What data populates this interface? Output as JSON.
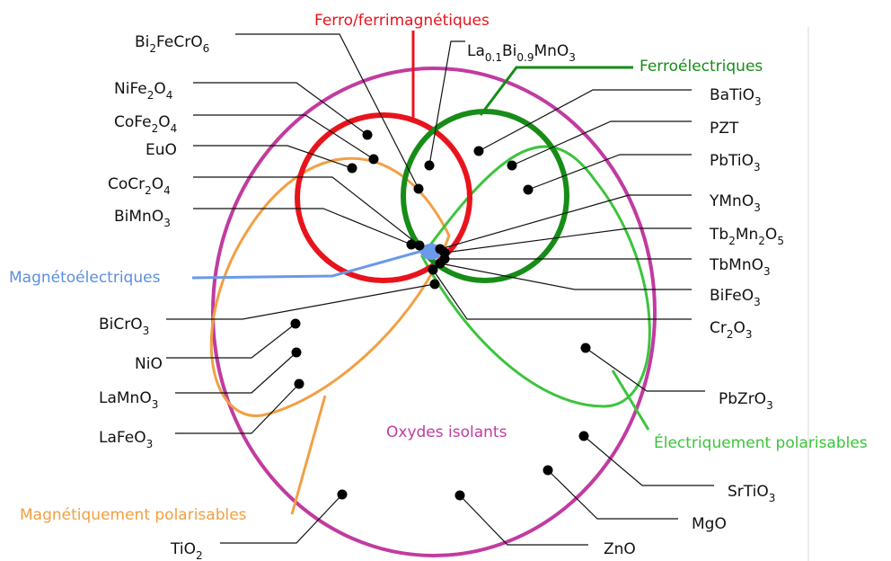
{
  "compounds": [
    {
      "parts": [
        "Bi",
        "2",
        "FeCrO",
        "6"
      ]
    },
    {
      "parts": [
        "NiFe",
        "2",
        "O",
        "4"
      ]
    },
    {
      "parts": [
        "CoFe",
        "2",
        "O",
        "4"
      ]
    },
    {
      "parts": [
        "EuO"
      ]
    },
    {
      "parts": [
        "CoCr",
        "2",
        "O",
        "4"
      ]
    },
    {
      "parts": [
        "BiMnO",
        "3"
      ]
    },
    {
      "parts": [
        "BiCrO",
        "3"
      ]
    },
    {
      "parts": [
        "NiO"
      ]
    },
    {
      "parts": [
        "LaMnO",
        "3"
      ]
    },
    {
      "parts": [
        "LaFeO",
        "3"
      ]
    },
    {
      "parts": [
        "TiO",
        "2"
      ]
    },
    {
      "parts": [
        "La",
        "0.1",
        "Bi",
        "0.9",
        "MnO",
        "3"
      ]
    },
    {
      "parts": [
        "BaTiO",
        "3"
      ]
    },
    {
      "parts": [
        "PZT"
      ]
    },
    {
      "parts": [
        "PbTiO",
        "3"
      ]
    },
    {
      "parts": [
        "YMnO",
        "3"
      ]
    },
    {
      "parts": [
        "Tb",
        "2",
        "Mn",
        "2",
        "O",
        "5"
      ]
    },
    {
      "parts": [
        "TbMnO",
        "3"
      ]
    },
    {
      "parts": [
        "BiFeO",
        "3"
      ]
    },
    {
      "parts": [
        "Cr",
        "2",
        "O",
        "3"
      ]
    },
    {
      "parts": [
        "PbZrO",
        "3"
      ]
    },
    {
      "parts": [
        "SrTiO",
        "3"
      ]
    },
    {
      "parts": [
        "MgO"
      ]
    },
    {
      "parts": [
        "ZnO"
      ]
    }
  ],
  "classes": {
    "ferromagnetic": "Ferro/ferrimagnétiques",
    "ferroelectric": "Ferroélectriques",
    "magnetoelectric": "Magnétoélectriques",
    "magnetic_polarizable": "Magnétiquement polarisables",
    "electric_polarizable": "Électriquement polarisables",
    "insulating": "Oxydes isolants"
  }
}
